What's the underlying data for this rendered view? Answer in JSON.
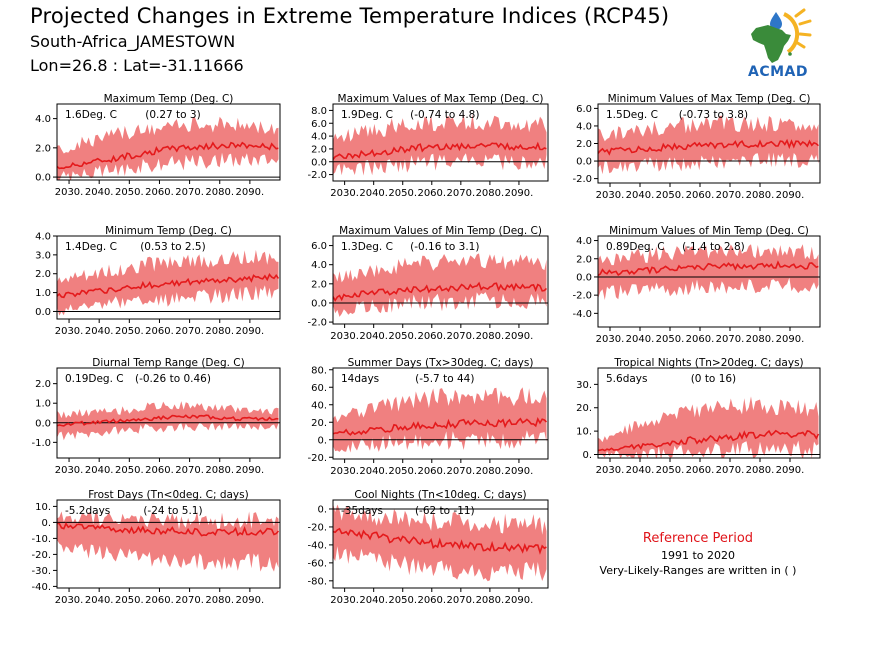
{
  "header": {
    "title": "Projected Changes in Extreme Temperature Indices (RCP45)",
    "location": "South-Africa_JAMESTOWN",
    "coords": "Lon=26.8 : Lat=-31.11666"
  },
  "logo": {
    "text": "ACMAD"
  },
  "reference": {
    "title": "Reference Period",
    "years": "1991 to 2020",
    "note": "Very-Likely-Ranges are written in ( )"
  },
  "colors": {
    "line": "#e41a1c",
    "band": "#f08080",
    "axis": "#000000"
  },
  "chart_data": [
    {
      "type": "area",
      "title": "Maximum Temp (Deg. C)",
      "summary": "1.6Deg. C",
      "range": "(0.27 to 3)",
      "x_ticks": [
        "2030.",
        "2040.",
        "2050.",
        "2060.",
        "2070.",
        "2080.",
        "2090."
      ],
      "y_ticks": [
        "4.0",
        "2.0",
        "0.0"
      ],
      "ylim": [
        -0.2,
        5
      ],
      "x": [
        2026,
        2036,
        2046,
        2056,
        2066,
        2076,
        2086,
        2096,
        2100
      ],
      "series": [
        {
          "role": "median",
          "values": [
            0.6,
            1.0,
            1.3,
            1.7,
            2.0,
            2.1,
            2.2,
            2.1,
            2.1
          ]
        },
        {
          "role": "lower",
          "values": [
            0.0,
            0.2,
            0.5,
            0.8,
            1.0,
            1.1,
            1.2,
            1.2,
            1.2
          ]
        },
        {
          "role": "upper",
          "values": [
            1.8,
            2.4,
            2.9,
            3.2,
            3.5,
            3.6,
            3.6,
            3.4,
            3.4
          ]
        }
      ]
    },
    {
      "type": "area",
      "title": "Maximum Values of Max Temp (Deg. C)",
      "summary": "1.9Deg. C",
      "range": "(-0.74 to 4.8)",
      "x_ticks": [
        "2030.",
        "2040.",
        "2050.",
        "2060.",
        "2070.",
        "2080.",
        "2090."
      ],
      "y_ticks": [
        "8.0",
        "6.0",
        "4.0",
        "2.0",
        "0.0",
        "-2.0"
      ],
      "ylim": [
        -3,
        9
      ],
      "x": [
        2026,
        2036,
        2046,
        2056,
        2066,
        2076,
        2086,
        2096,
        2100
      ],
      "series": [
        {
          "role": "median",
          "values": [
            0.7,
            1.2,
            1.7,
            2.2,
            2.4,
            2.5,
            2.4,
            2.3,
            2.3
          ]
        },
        {
          "role": "lower",
          "values": [
            -1.5,
            -1.0,
            -0.6,
            -0.2,
            0.0,
            0.1,
            0.0,
            0.0,
            0.0
          ]
        },
        {
          "role": "upper",
          "values": [
            3.5,
            4.5,
            5.4,
            6.0,
            6.3,
            6.2,
            6.0,
            5.8,
            5.8
          ]
        }
      ]
    },
    {
      "type": "area",
      "title": "Minimum Values of Max Temp (Deg. C)",
      "summary": "1.5Deg. C",
      "range": "(-0.73 to 3.8)",
      "x_ticks": [
        "2030.",
        "2040.",
        "2050.",
        "2060.",
        "2070.",
        "2080.",
        "2090."
      ],
      "y_ticks": [
        "6.0",
        "4.0",
        "2.0",
        "0.0",
        "-2.0"
      ],
      "ylim": [
        -2.5,
        6.5
      ],
      "x": [
        2026,
        2036,
        2046,
        2056,
        2066,
        2076,
        2086,
        2096,
        2100
      ],
      "series": [
        {
          "role": "median",
          "values": [
            1.0,
            1.3,
            1.5,
            1.7,
            1.9,
            1.9,
            2.0,
            1.9,
            1.9
          ]
        },
        {
          "role": "lower",
          "values": [
            -0.8,
            -0.6,
            -0.4,
            -0.2,
            0.0,
            0.0,
            0.1,
            0.0,
            0.0
          ]
        },
        {
          "role": "upper",
          "values": [
            3.0,
            3.4,
            3.8,
            4.1,
            4.3,
            4.2,
            4.2,
            4.0,
            4.0
          ]
        }
      ]
    },
    {
      "type": "area",
      "title": "Minimum Temp (Deg. C)",
      "summary": "1.4Deg. C",
      "range": "(0.53 to 2.5)",
      "x_ticks": [
        "2030.",
        "2040.",
        "2050.",
        "2060.",
        "2070.",
        "2080.",
        "2090."
      ],
      "y_ticks": [
        "4.0",
        "3.0",
        "2.0",
        "1.0",
        "0.0"
      ],
      "ylim": [
        -0.4,
        4
      ],
      "x": [
        2026,
        2036,
        2046,
        2056,
        2066,
        2076,
        2086,
        2096,
        2100
      ],
      "series": [
        {
          "role": "median",
          "values": [
            0.8,
            1.0,
            1.2,
            1.4,
            1.5,
            1.6,
            1.7,
            1.8,
            1.8
          ]
        },
        {
          "role": "lower",
          "values": [
            0.1,
            0.3,
            0.5,
            0.6,
            0.7,
            0.8,
            0.9,
            1.0,
            1.0
          ]
        },
        {
          "role": "upper",
          "values": [
            1.6,
            1.9,
            2.2,
            2.5,
            2.6,
            2.7,
            2.8,
            2.9,
            2.9
          ]
        }
      ]
    },
    {
      "type": "area",
      "title": "Maximum Values of Min Temp (Deg. C)",
      "summary": "1.3Deg. C",
      "range": "(-0.16 to 3.1)",
      "x_ticks": [
        "2030.",
        "2040.",
        "2050.",
        "2060.",
        "2070.",
        "2080.",
        "2090."
      ],
      "y_ticks": [
        "6.0",
        "4.0",
        "2.0",
        "0.0",
        "-2.0"
      ],
      "ylim": [
        -2.2,
        7
      ],
      "x": [
        2026,
        2036,
        2046,
        2056,
        2066,
        2076,
        2086,
        2096,
        2100
      ],
      "series": [
        {
          "role": "median",
          "values": [
            0.5,
            0.9,
            1.2,
            1.5,
            1.6,
            1.7,
            1.7,
            1.6,
            1.6
          ]
        },
        {
          "role": "lower",
          "values": [
            -0.8,
            -0.5,
            -0.2,
            0.0,
            0.1,
            0.2,
            0.2,
            0.2,
            0.2
          ]
        },
        {
          "role": "upper",
          "values": [
            2.5,
            3.2,
            3.8,
            4.2,
            4.4,
            4.4,
            4.3,
            4.1,
            4.1
          ]
        }
      ]
    },
    {
      "type": "area",
      "title": "Minimum Values of Min Temp (Deg. C)",
      "summary": "0.89Deg. C",
      "range": "(-1.4 to 2.8)",
      "x_ticks": [
        "2030.",
        "2040.",
        "2050.",
        "2060.",
        "2070.",
        "2080.",
        "2090."
      ],
      "y_ticks": [
        "4.0",
        "2.0",
        "0.0",
        "-2.0",
        "-4.0"
      ],
      "ylim": [
        -5.5,
        4.5
      ],
      "x": [
        2026,
        2036,
        2046,
        2056,
        2066,
        2076,
        2086,
        2096,
        2100
      ],
      "series": [
        {
          "role": "median",
          "values": [
            0.5,
            0.6,
            0.8,
            1.0,
            1.2,
            1.2,
            1.3,
            1.2,
            1.2
          ]
        },
        {
          "role": "lower",
          "values": [
            -1.8,
            -1.6,
            -1.4,
            -1.2,
            -1.0,
            -1.0,
            -0.9,
            -1.0,
            -1.0
          ]
        },
        {
          "role": "upper",
          "values": [
            2.0,
            2.2,
            2.5,
            2.7,
            2.9,
            2.9,
            2.9,
            2.8,
            2.8
          ]
        }
      ]
    },
    {
      "type": "area",
      "title": "Diurnal Temp Range (Deg. C)",
      "summary": "0.19Deg. C",
      "range": "(-0.26 to 0.46)",
      "x_ticks": [
        "2030.",
        "2040.",
        "2050.",
        "2060.",
        "2070.",
        "2080.",
        "2090."
      ],
      "y_ticks": [
        "2.0",
        "1.0",
        "0.0",
        "-1.0"
      ],
      "ylim": [
        -1.8,
        2.8
      ],
      "x": [
        2026,
        2036,
        2046,
        2056,
        2066,
        2076,
        2086,
        2096,
        2100
      ],
      "series": [
        {
          "role": "median",
          "values": [
            -0.1,
            0.0,
            0.1,
            0.2,
            0.3,
            0.3,
            0.2,
            0.2,
            0.2
          ]
        },
        {
          "role": "lower",
          "values": [
            -0.7,
            -0.6,
            -0.4,
            -0.3,
            -0.2,
            -0.2,
            -0.2,
            -0.2,
            -0.2
          ]
        },
        {
          "role": "upper",
          "values": [
            0.4,
            0.5,
            0.6,
            0.8,
            0.9,
            0.8,
            0.7,
            0.6,
            0.6
          ]
        }
      ]
    },
    {
      "type": "area",
      "title": "Summer Days (Tx>30deg. C; days)",
      "summary": "14days",
      "range": "(-5.7 to 44)",
      "x_ticks": [
        "2030.",
        "2040.",
        "2050.",
        "2060.",
        "2070.",
        "2080.",
        "2090."
      ],
      "y_ticks": [
        "80.",
        "60.",
        "40.",
        "20.",
        "0.",
        "-20."
      ],
      "ylim": [
        -22,
        82
      ],
      "x": [
        2026,
        2036,
        2046,
        2056,
        2066,
        2076,
        2086,
        2096,
        2100
      ],
      "series": [
        {
          "role": "median",
          "values": [
            7,
            10,
            13,
            16,
            18,
            19,
            20,
            20,
            20
          ]
        },
        {
          "role": "lower",
          "values": [
            -8,
            -6,
            -4,
            -2,
            -1,
            0,
            0,
            0,
            0
          ]
        },
        {
          "role": "upper",
          "values": [
            25,
            33,
            40,
            46,
            50,
            51,
            50,
            48,
            48
          ]
        }
      ]
    },
    {
      "type": "area",
      "title": "Tropical Nights (Tn>20deg. C; days)",
      "summary": "5.6days",
      "range": "(0 to 16)",
      "x_ticks": [
        "2030.",
        "2040.",
        "2050.",
        "2060.",
        "2070.",
        "2080.",
        "2090."
      ],
      "y_ticks": [
        "30.",
        "20.",
        "10.",
        "0."
      ],
      "ylim": [
        -1.5,
        37
      ],
      "x": [
        2026,
        2036,
        2046,
        2056,
        2066,
        2076,
        2086,
        2096,
        2100
      ],
      "series": [
        {
          "role": "median",
          "values": [
            1.5,
            3,
            4.5,
            6,
            7,
            8,
            8.5,
            8.5,
            8.5
          ]
        },
        {
          "role": "lower",
          "values": [
            0,
            0,
            0.5,
            1,
            1.5,
            2,
            2,
            2,
            2
          ]
        },
        {
          "role": "upper",
          "values": [
            6,
            11,
            15,
            18,
            20,
            21,
            21,
            20,
            20
          ]
        }
      ]
    },
    {
      "type": "area",
      "title": "Frost Days (Tn<0deg. C; days)",
      "summary": "-5.2days",
      "range": "(-24 to 5.1)",
      "x_ticks": [
        "2030.",
        "2040.",
        "2050.",
        "2060.",
        "2070.",
        "2080.",
        "2090."
      ],
      "y_ticks": [
        "10.",
        "0.",
        "-10.",
        "-20.",
        "-30.",
        "-40."
      ],
      "ylim": [
        -41,
        14
      ],
      "x": [
        2026,
        2036,
        2046,
        2056,
        2066,
        2076,
        2086,
        2096,
        2100
      ],
      "series": [
        {
          "role": "median",
          "values": [
            -2,
            -3,
            -4,
            -5,
            -5.5,
            -6,
            -6,
            -6,
            -6
          ]
        },
        {
          "role": "lower",
          "values": [
            -15,
            -18,
            -20,
            -22,
            -24,
            -25,
            -25,
            -25,
            -25
          ]
        },
        {
          "role": "upper",
          "values": [
            3,
            3,
            2,
            2,
            1.5,
            1,
            1,
            1,
            1
          ]
        }
      ]
    },
    {
      "type": "area",
      "title": "Cool Nights (Tn<10deg. C; days)",
      "summary": "-35days",
      "range": "(-62 to -11)",
      "x_ticks": [
        "2030.",
        "2040.",
        "2050.",
        "2060.",
        "2070.",
        "2080.",
        "2090."
      ],
      "y_ticks": [
        "0.",
        "-20.",
        "-40.",
        "-60.",
        "-80."
      ],
      "ylim": [
        -88,
        10
      ],
      "x": [
        2026,
        2036,
        2046,
        2056,
        2066,
        2076,
        2086,
        2096,
        2100
      ],
      "series": [
        {
          "role": "median",
          "values": [
            -22,
            -28,
            -33,
            -37,
            -40,
            -42,
            -43,
            -44,
            -44
          ]
        },
        {
          "role": "lower",
          "values": [
            -48,
            -55,
            -60,
            -65,
            -68,
            -70,
            -70,
            -70,
            -70
          ]
        },
        {
          "role": "upper",
          "values": [
            -3,
            -6,
            -10,
            -13,
            -15,
            -16,
            -17,
            -17,
            -17
          ]
        }
      ]
    }
  ]
}
